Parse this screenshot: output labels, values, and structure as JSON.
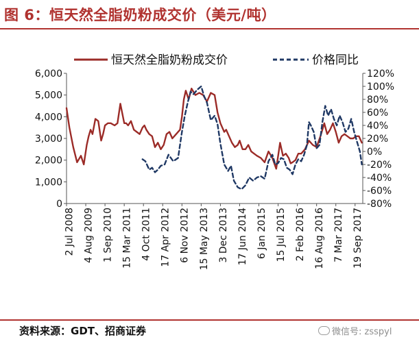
{
  "figure": {
    "title": "图 6：恒天然全脂奶粉成交价（美元/吨）",
    "source": "资料来源：GDT、招商证券",
    "watermark": "微信号: zsspyl"
  },
  "colors": {
    "price": "#9b2b27",
    "yoy": "#1f3864",
    "accent": "#b0322f"
  },
  "chart_data": {
    "type": "line",
    "title": "恒天然全脂奶粉成交价（美元/吨）",
    "x": [
      "2 Jul 2008",
      "4 Aug 2009",
      "1 Sep 2010",
      "15 Mar 2011",
      "4 Oct 2011",
      "17 Apr 2012",
      "6 Nov 2012",
      "15 May 2013",
      "3 Dec 2013",
      "17 Jun 2014",
      "6 Jan 2015",
      "15 Jul 2015",
      "2 Feb 2016",
      "16 Aug 2016",
      "7 Mar 2017",
      "19 Sep 2017"
    ],
    "left_axis": {
      "min": 0,
      "max": 6000,
      "ticks": [
        "0",
        "1,000",
        "2,000",
        "3,000",
        "4,000",
        "5,000",
        "6,000"
      ]
    },
    "right_axis": {
      "min": -80,
      "max": 120,
      "ticks": [
        "-80%",
        "-60%",
        "-40%",
        "-20%",
        "0%",
        "20%",
        "40%",
        "60%",
        "80%",
        "100%",
        "120%"
      ]
    },
    "legend": {
      "position": "top",
      "items": [
        "恒天然全脂奶粉成交价",
        "价格同比"
      ]
    },
    "series": [
      {
        "name": "恒天然全脂奶粉成交价",
        "axis": "left",
        "style": "solid",
        "x": [
          0,
          0.15,
          0.35,
          0.55,
          0.75,
          0.9,
          1.05,
          1.15,
          1.25,
          1.35,
          1.5,
          1.65,
          1.8,
          1.9,
          2.0,
          2.15,
          2.3,
          2.5,
          2.65,
          2.8,
          3.0,
          3.1,
          3.2,
          3.35,
          3.5,
          3.65,
          3.8,
          3.95,
          4.05,
          4.15,
          4.3,
          4.45,
          4.6,
          4.75,
          4.9,
          5.05,
          5.2,
          5.35,
          5.5,
          5.7,
          5.9,
          6.0,
          6.1,
          6.2,
          6.35,
          6.5,
          6.7,
          6.9,
          7.1,
          7.3,
          7.5,
          7.7,
          7.85,
          8.0,
          8.1,
          8.2,
          8.3,
          8.45,
          8.6,
          8.75,
          8.9,
          9.0,
          9.15,
          9.3,
          9.45,
          9.6,
          9.75,
          9.9,
          10.1,
          10.3,
          10.5,
          10.7,
          10.9,
          11.1,
          11.25,
          11.4,
          11.55,
          11.65,
          11.75,
          11.9,
          12.05,
          12.2,
          12.4,
          12.6,
          12.8,
          13.0,
          13.2,
          13.4,
          13.55,
          13.7,
          13.85,
          14.0,
          14.15,
          14.3,
          14.45,
          14.6,
          14.75,
          14.9,
          15.05,
          15.2,
          15.35
        ],
        "values": [
          4400,
          3500,
          2600,
          1900,
          2200,
          1800,
          2700,
          3100,
          3400,
          3200,
          3900,
          3800,
          2900,
          3200,
          3600,
          3700,
          3700,
          3600,
          3700,
          4600,
          3700,
          3700,
          3600,
          3800,
          3400,
          3300,
          3200,
          3500,
          3600,
          3400,
          3200,
          3100,
          2600,
          2800,
          2500,
          2700,
          3200,
          3300,
          3000,
          3200,
          3400,
          4000,
          4800,
          5200,
          4800,
          5300,
          5000,
          5100,
          5000,
          4700,
          5100,
          5000,
          4200,
          3700,
          3500,
          3300,
          3400,
          3100,
          2800,
          2600,
          2700,
          2900,
          2500,
          2500,
          2700,
          2400,
          2300,
          2200,
          2100,
          1900,
          2400,
          2100,
          1600,
          2800,
          2200,
          2300,
          2100,
          1850,
          1900,
          2000,
          2300,
          2300,
          2500,
          2900,
          2700,
          2600,
          3100,
          3700,
          3200,
          3400,
          3700,
          3300,
          2800,
          3100,
          3200,
          3100,
          3000,
          3000,
          3100,
          3100,
          2800
        ]
      },
      {
        "name": "价格同比",
        "axis": "right",
        "style": "dashed",
        "x": [
          3.95,
          4.1,
          4.3,
          4.45,
          4.6,
          4.75,
          4.9,
          5.1,
          5.3,
          5.55,
          5.8,
          6.0,
          6.15,
          6.3,
          6.45,
          6.6,
          6.8,
          7.0,
          7.15,
          7.3,
          7.5,
          7.7,
          7.85,
          8.0,
          8.2,
          8.4,
          8.55,
          8.7,
          8.9,
          9.1,
          9.3,
          9.5,
          9.7,
          9.9,
          10.1,
          10.3,
          10.5,
          10.7,
          10.85,
          11.0,
          11.15,
          11.3,
          11.45,
          11.6,
          11.75,
          11.9,
          12.05,
          12.2,
          12.35,
          12.5,
          12.6,
          12.7,
          12.85,
          13.0,
          13.15,
          13.3,
          13.45,
          13.6,
          13.75,
          13.9,
          14.05,
          14.2,
          14.35,
          14.5,
          14.65,
          14.8,
          14.95,
          15.1,
          15.25,
          15.35
        ],
        "values": [
          -12,
          -15,
          -28,
          -25,
          -32,
          -28,
          -22,
          -20,
          -5,
          -15,
          -10,
          30,
          55,
          75,
          92,
          88,
          95,
          100,
          85,
          75,
          48,
          55,
          42,
          12,
          -20,
          -30,
          -22,
          -45,
          -55,
          -58,
          -52,
          -40,
          -45,
          -40,
          -38,
          -42,
          -15,
          -5,
          -20,
          -18,
          -10,
          -12,
          -25,
          -28,
          -35,
          -20,
          -12,
          -15,
          -5,
          10,
          45,
          40,
          30,
          5,
          10,
          45,
          70,
          55,
          65,
          50,
          40,
          55,
          45,
          30,
          35,
          50,
          30,
          15,
          0,
          -20
        ]
      }
    ]
  }
}
